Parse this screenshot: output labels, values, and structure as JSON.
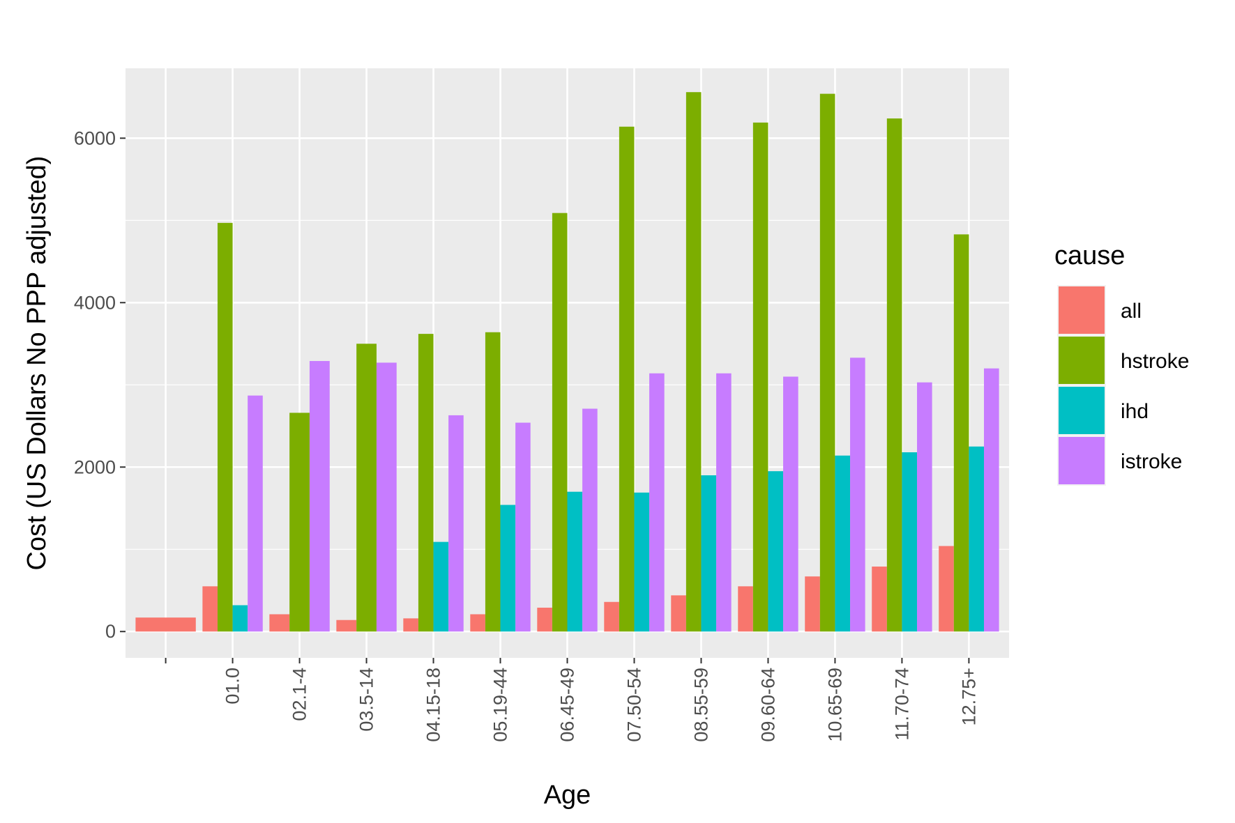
{
  "chart_data": {
    "type": "bar",
    "xlabel": "Age",
    "ylabel": "Cost (US Dollars No PPP adjusted)",
    "ylim": [
      -320,
      6850
    ],
    "yticks": [
      0,
      2000,
      4000,
      6000
    ],
    "ytick_labels": [
      "0",
      "2000",
      "4000",
      "6000"
    ],
    "categories": [
      "",
      "01.0",
      "02.1-4",
      "03.5-14",
      "04.15-18",
      "05.19-44",
      "06.45-49",
      "07.50-54",
      "08.55-59",
      "09.60-64",
      "10.65-69",
      "11.70-74",
      "12.75+"
    ],
    "legend": {
      "title": "cause",
      "position": "right"
    },
    "grid": true,
    "series": [
      {
        "name": "all",
        "color": "#F8766D",
        "values": [
          170,
          550,
          210,
          140,
          160,
          210,
          290,
          360,
          440,
          550,
          670,
          790,
          1040
        ]
      },
      {
        "name": "hstroke",
        "color": "#7CAE00",
        "values": [
          null,
          4970,
          2660,
          3500,
          3620,
          3640,
          5090,
          6140,
          6560,
          6190,
          6540,
          6240,
          4830
        ]
      },
      {
        "name": "ihd",
        "color": "#00BFC4",
        "values": [
          null,
          320,
          null,
          null,
          1090,
          1540,
          1700,
          1690,
          1900,
          1950,
          2140,
          2180,
          2250
        ]
      },
      {
        "name": "istroke",
        "color": "#C77CFF",
        "values": [
          null,
          2870,
          3290,
          3270,
          2630,
          2540,
          2710,
          3140,
          3140,
          3100,
          3330,
          3030,
          3200
        ]
      }
    ]
  }
}
